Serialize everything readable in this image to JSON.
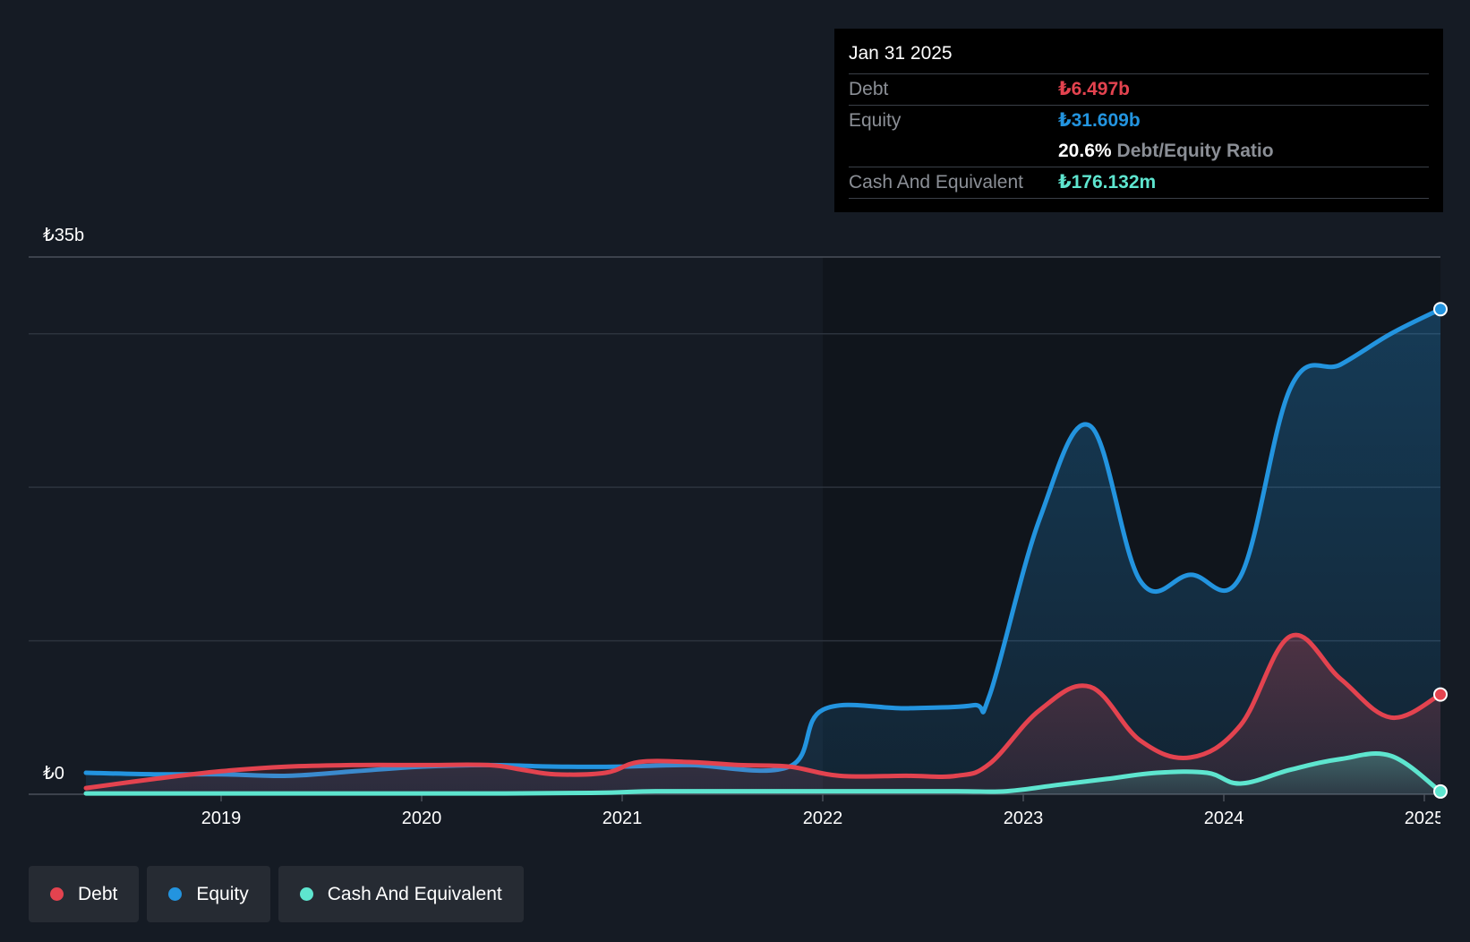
{
  "tooltip": {
    "date": "Jan 31 2025",
    "debt_label": "Debt",
    "debt_value": "₺6.497b",
    "equity_label": "Equity",
    "equity_value": "₺31.609b",
    "ratio_value": "20.6%",
    "ratio_label": "Debt/Equity Ratio",
    "cash_label": "Cash And Equivalent",
    "cash_value": "₺176.132m"
  },
  "legend": {
    "debt": "Debt",
    "equity": "Equity",
    "cash": "Cash And Equivalent"
  },
  "colors": {
    "background": "#151b24",
    "debt": "#e3434f",
    "equity": "#2394df",
    "cash": "#5ee5cf",
    "grid": "#2c333d"
  },
  "chart_data": {
    "type": "area",
    "y_unit": "₺ billions",
    "ylim": [
      0,
      35
    ],
    "y_tick_labels": [
      {
        "value": 35,
        "label": "₺35b"
      },
      {
        "value": 0,
        "label": "₺0"
      }
    ],
    "gridlines": [
      35,
      30,
      20,
      10,
      0
    ],
    "x_range": [
      "2018-05",
      "2025-02"
    ],
    "x_tick_labels": [
      "2019",
      "2020",
      "2021",
      "2022",
      "2023",
      "2024",
      "2025"
    ],
    "series": [
      {
        "name": "Debt",
        "color": "#e3434f",
        "points": [
          [
            "2018-05",
            0.4
          ],
          [
            "2018-09",
            1.0
          ],
          [
            "2019-01",
            1.5
          ],
          [
            "2019-05",
            1.8
          ],
          [
            "2019-09",
            1.9
          ],
          [
            "2020-01",
            1.9
          ],
          [
            "2020-05",
            1.9
          ],
          [
            "2020-07",
            1.6
          ],
          [
            "2020-09",
            1.3
          ],
          [
            "2020-12",
            1.4
          ],
          [
            "2021-02",
            2.1
          ],
          [
            "2021-05",
            2.1
          ],
          [
            "2021-08",
            1.9
          ],
          [
            "2021-11",
            1.8
          ],
          [
            "2022-02",
            1.2
          ],
          [
            "2022-06",
            1.2
          ],
          [
            "2022-09",
            1.2
          ],
          [
            "2022-11",
            2.0
          ],
          [
            "2023-02",
            5.5
          ],
          [
            "2023-05",
            7.0
          ],
          [
            "2023-08",
            3.5
          ],
          [
            "2023-11",
            2.4
          ],
          [
            "2024-02",
            4.5
          ],
          [
            "2024-05",
            10.3
          ],
          [
            "2024-08",
            7.5
          ],
          [
            "2024-11",
            5.0
          ],
          [
            "2025-01",
            6.5
          ]
        ]
      },
      {
        "name": "Equity",
        "color": "#2394df",
        "points": [
          [
            "2018-05",
            1.4
          ],
          [
            "2018-09",
            1.3
          ],
          [
            "2019-01",
            1.3
          ],
          [
            "2019-05",
            1.2
          ],
          [
            "2019-09",
            1.5
          ],
          [
            "2020-01",
            1.8
          ],
          [
            "2020-05",
            1.9
          ],
          [
            "2020-09",
            1.8
          ],
          [
            "2021-01",
            1.8
          ],
          [
            "2021-05",
            1.9
          ],
          [
            "2021-11",
            1.8
          ],
          [
            "2022-01",
            5.5
          ],
          [
            "2022-06",
            5.6
          ],
          [
            "2022-10",
            5.8
          ],
          [
            "2022-11",
            6.5
          ],
          [
            "2023-02",
            18.0
          ],
          [
            "2023-05",
            24.0
          ],
          [
            "2023-08",
            13.9
          ],
          [
            "2023-11",
            14.3
          ],
          [
            "2024-02",
            14.2
          ],
          [
            "2024-05",
            26.5
          ],
          [
            "2024-08",
            28.0
          ],
          [
            "2024-11",
            30.0
          ],
          [
            "2025-01",
            31.6
          ]
        ]
      },
      {
        "name": "Cash And Equivalent",
        "color": "#5ee5cf",
        "points": [
          [
            "2018-05",
            0.05
          ],
          [
            "2019-06",
            0.05
          ],
          [
            "2020-06",
            0.05
          ],
          [
            "2020-12",
            0.1
          ],
          [
            "2021-03",
            0.2
          ],
          [
            "2021-09",
            0.2
          ],
          [
            "2022-03",
            0.2
          ],
          [
            "2022-09",
            0.2
          ],
          [
            "2022-12",
            0.2
          ],
          [
            "2023-03",
            0.6
          ],
          [
            "2023-06",
            1.0
          ],
          [
            "2023-09",
            1.4
          ],
          [
            "2023-12",
            1.4
          ],
          [
            "2024-02",
            0.7
          ],
          [
            "2024-05",
            1.6
          ],
          [
            "2024-08",
            2.3
          ],
          [
            "2024-11",
            2.5
          ],
          [
            "2025-01",
            0.18
          ]
        ]
      }
    ]
  }
}
